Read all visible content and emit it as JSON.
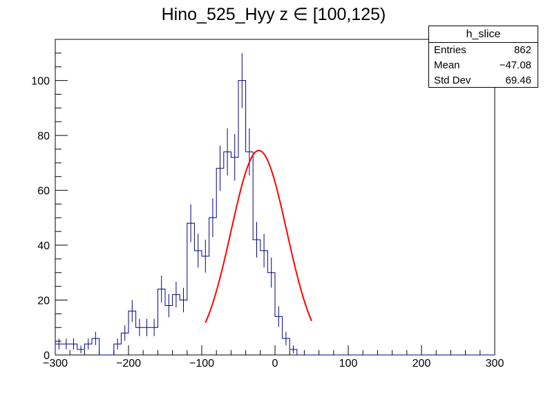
{
  "chart_data": {
    "type": "histogram",
    "title": "Hino_525_Hyy z  ∈ [100,125)",
    "xlabel": "",
    "ylabel": "",
    "xlim": [
      -300,
      300
    ],
    "ylim": [
      0,
      115
    ],
    "x_ticks": [
      -300,
      -200,
      -100,
      0,
      100,
      200,
      300
    ],
    "x_tick_labels": [
      "−300",
      "−200",
      "−100",
      "0",
      "100",
      "200",
      "300"
    ],
    "y_ticks": [
      0,
      20,
      40,
      60,
      80,
      100
    ],
    "y_tick_labels": [
      "0",
      "20",
      "40",
      "60",
      "80",
      "100"
    ],
    "bin_width": 10,
    "bin_edges_start": -300,
    "counts": [
      4,
      4,
      4,
      2,
      4,
      6,
      0,
      0,
      4,
      8,
      16,
      10,
      10,
      10,
      24,
      18,
      22,
      20,
      48,
      38,
      36,
      50,
      68,
      74,
      72,
      100,
      74,
      42,
      38,
      30,
      14,
      6,
      2,
      0,
      0,
      0,
      0,
      0,
      0,
      0,
      0,
      0,
      0,
      0,
      0,
      0,
      0,
      0,
      0,
      0,
      0,
      0,
      0,
      0,
      0,
      0,
      0,
      0,
      0,
      0
    ],
    "errors": "sqrt(counts)",
    "line_color": "#000080",
    "fit": {
      "type": "gaussian",
      "amplitude": 74.5,
      "mean": -22,
      "sigma": 38,
      "x_range": [
        -95,
        50
      ],
      "color": "#ff0000"
    },
    "stats_box": {
      "name": "h_slice",
      "rows": [
        {
          "label": "Entries",
          "value": "862"
        },
        {
          "label": "Mean",
          "value": "−47.08"
        },
        {
          "label": "Std Dev",
          "value": "69.46"
        }
      ]
    },
    "grid": false
  }
}
